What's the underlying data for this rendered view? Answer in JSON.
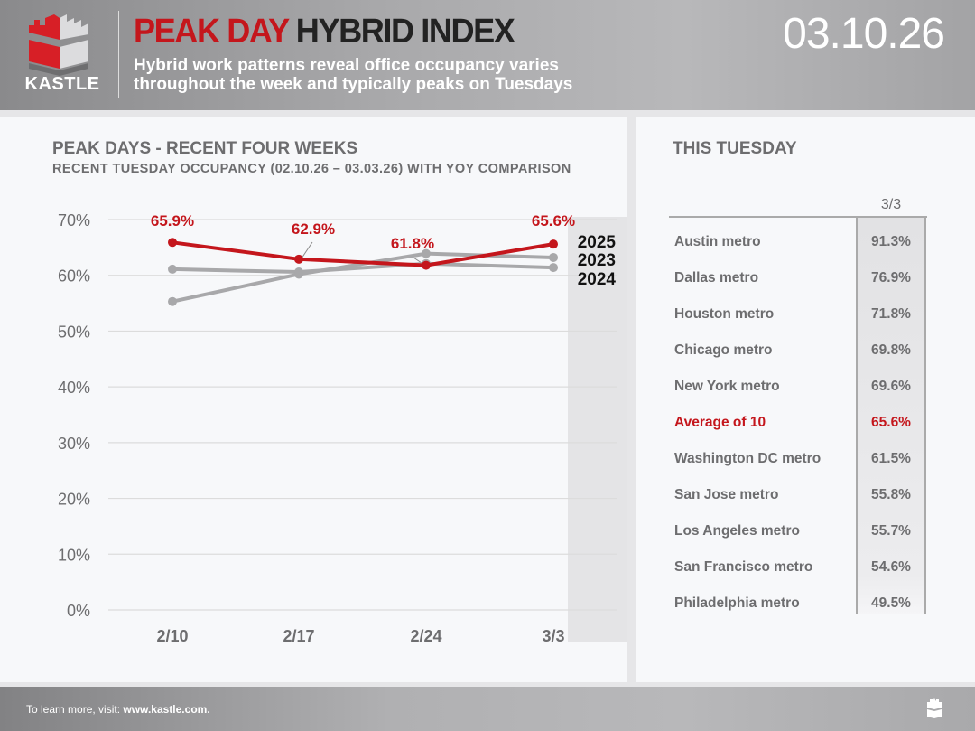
{
  "header": {
    "brand": "KASTLE",
    "title_red": "PEAK DAY",
    "title_dark": "HYBRID INDEX",
    "subtitle": "Hybrid work patterns reveal office occupancy varies throughout the week and typically peaks on Tuesdays",
    "date": "03.10.26"
  },
  "chart_data": {
    "type": "line",
    "title": "PEAK DAYS - RECENT FOUR WEEKS",
    "subtitle": "RECENT TUESDAY OCCUPANCY (02.10.26 – 03.03.26) WITH YOY COMPARISON",
    "categories": [
      "2/10",
      "2/17",
      "2/24",
      "3/3"
    ],
    "ylim": [
      0,
      70
    ],
    "yticks": [
      "0%",
      "10%",
      "20%",
      "30%",
      "40%",
      "50%",
      "60%",
      "70%"
    ],
    "grid": true,
    "legend": "right",
    "series": [
      {
        "name": "2025",
        "values": [
          65.9,
          62.9,
          61.8,
          65.6
        ],
        "labels": [
          "65.9%",
          "62.9%",
          "61.8%",
          "65.6%"
        ],
        "color": "#c4161c"
      },
      {
        "name": "2023",
        "values": [
          55.3,
          60.2,
          63.9,
          63.2
        ],
        "color": "#a8a8aa"
      },
      {
        "name": "2024",
        "values": [
          61.1,
          60.6,
          62.1,
          61.4
        ],
        "color": "#a8a8aa"
      }
    ]
  },
  "table": {
    "title": "THIS TUESDAY",
    "column": "3/3",
    "rows": [
      {
        "metro": "Austin metro",
        "value": "91.3%"
      },
      {
        "metro": "Dallas metro",
        "value": "76.9%"
      },
      {
        "metro": "Houston metro",
        "value": "71.8%"
      },
      {
        "metro": "Chicago metro",
        "value": "69.8%"
      },
      {
        "metro": "New York metro",
        "value": "69.6%"
      },
      {
        "metro": "Average of 10",
        "value": "65.6%",
        "highlight": true
      },
      {
        "metro": "Washington DC metro",
        "value": "61.5%"
      },
      {
        "metro": "San Jose metro",
        "value": "55.8%"
      },
      {
        "metro": "Los Angeles metro",
        "value": "55.7%"
      },
      {
        "metro": "San Francisco metro",
        "value": "54.6%"
      },
      {
        "metro": "Philadelphia metro",
        "value": "49.5%"
      }
    ]
  },
  "footer": {
    "prefix": "To learn more, visit:",
    "link": "www.kastle.com."
  }
}
